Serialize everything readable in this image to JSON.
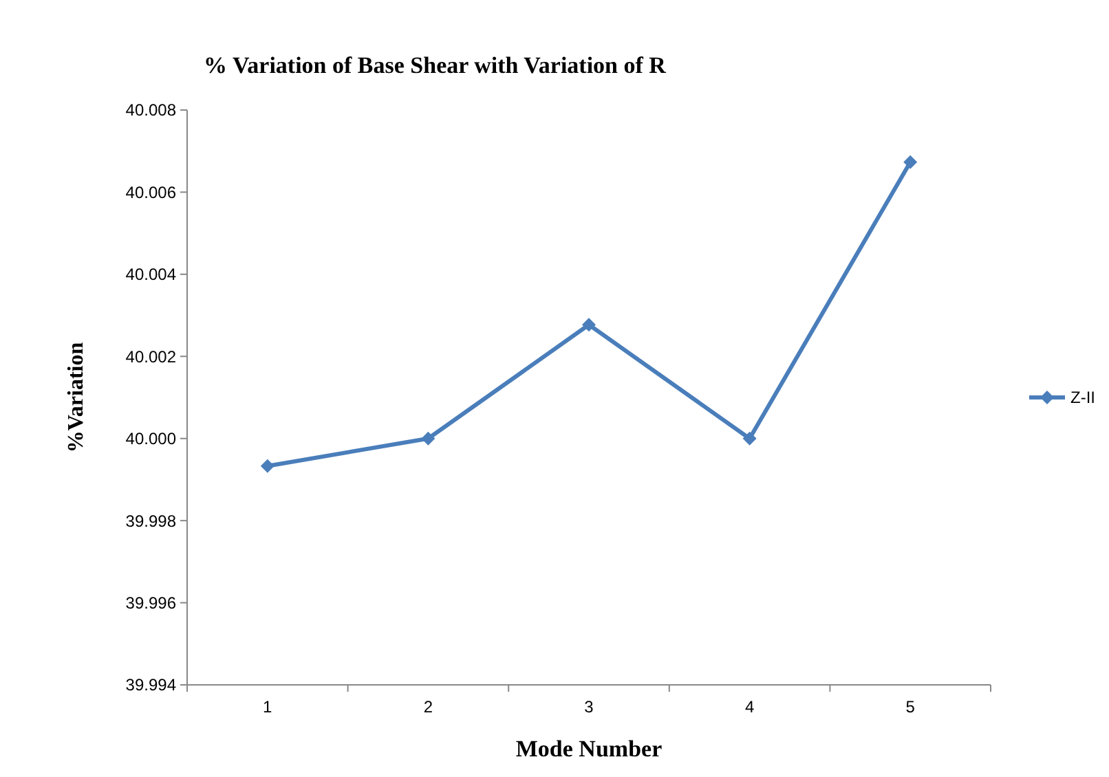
{
  "chart_data": {
    "type": "line",
    "title": "% Variation of Base Shear with Variation of R",
    "xlabel": "Mode Number",
    "ylabel": "%Variation",
    "categories": [
      "1",
      "2",
      "3",
      "4",
      "5"
    ],
    "series": [
      {
        "name": "Z-II",
        "color": "#4a7ebb",
        "values": [
          39.99933,
          40.0,
          40.00277,
          40.0,
          40.00673
        ]
      }
    ],
    "ylim": [
      39.994,
      40.008
    ],
    "yticks": [
      {
        "value": 39.994,
        "label": "39.994"
      },
      {
        "value": 39.996,
        "label": "39.996"
      },
      {
        "value": 39.998,
        "label": "39.998"
      },
      {
        "value": 40.0,
        "label": "40.000"
      },
      {
        "value": 40.002,
        "label": "40.002"
      },
      {
        "value": 40.004,
        "label": "40.004"
      },
      {
        "value": 40.006,
        "label": "40.006"
      },
      {
        "value": 40.008,
        "label": "40.008"
      }
    ],
    "grid": false,
    "legend": "right",
    "marker": "diamond",
    "line_style": "solid"
  }
}
